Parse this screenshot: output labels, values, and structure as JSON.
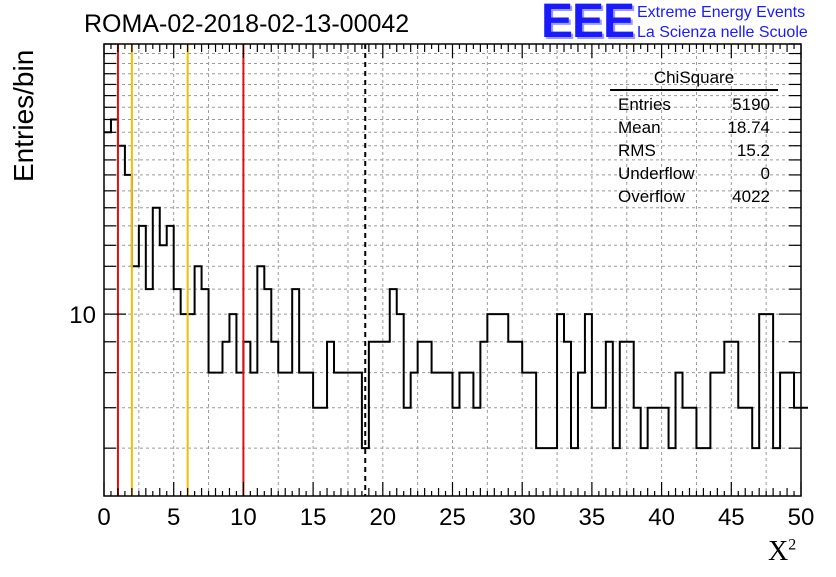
{
  "title": "ROMA-02-2018-02-13-00042",
  "logo": {
    "mark": "EEE",
    "line1": "Extreme Energy Events",
    "line2": "La Scienza nelle Scuole"
  },
  "stats": {
    "title": "ChiSquare",
    "rows": [
      {
        "label": "Entries",
        "value": "5190"
      },
      {
        "label": "Mean",
        "value": "18.74"
      },
      {
        "label": "RMS",
        "value": "15.2"
      },
      {
        "label": "Underflow",
        "value": "0"
      },
      {
        "label": "Overflow",
        "value": "4022"
      }
    ]
  },
  "chart_data": {
    "type": "step",
    "ylabel": "Entries/bin",
    "xlabel_base": "X",
    "xlabel_sup": "2",
    "xlim": [
      0,
      50
    ],
    "ylim": [
      5,
      28
    ],
    "yscale": "log",
    "y_tick_labels": [
      {
        "value": 10,
        "label": "10"
      }
    ],
    "x_tick_labels": [
      "0",
      "5",
      "10",
      "15",
      "20",
      "25",
      "30",
      "35",
      "40",
      "45",
      "50"
    ],
    "grid": true,
    "bin_width": 0.5,
    "bin_start": 0,
    "values": [
      20,
      21,
      19,
      17,
      12,
      14,
      11,
      15,
      13,
      14,
      11,
      10,
      10,
      12,
      11,
      8,
      8,
      9,
      10,
      8,
      9,
      8,
      12,
      11,
      9,
      8,
      8,
      11,
      8,
      8,
      7,
      7,
      9,
      8,
      8,
      8,
      8,
      6,
      9,
      9,
      9,
      11,
      10,
      7,
      8,
      9,
      9,
      8,
      8,
      8,
      7,
      8,
      8,
      7,
      9,
      10,
      10,
      10,
      9,
      9,
      8,
      8,
      6,
      6,
      6,
      10,
      9,
      6,
      8,
      10,
      7,
      7,
      9,
      6,
      9,
      9,
      7,
      6,
      7,
      7,
      7,
      6,
      8,
      7,
      7,
      6,
      6,
      8,
      8,
      9,
      9,
      7,
      7,
      6,
      10,
      10,
      6,
      8,
      8,
      7,
      7
    ],
    "markers": [
      {
        "x": 1,
        "color": "#e01010",
        "style": "solid"
      },
      {
        "x": 2,
        "color": "#f0c000",
        "style": "solid"
      },
      {
        "x": 6,
        "color": "#f0c000",
        "style": "solid"
      },
      {
        "x": 10,
        "color": "#e01010",
        "style": "solid"
      },
      {
        "x": 18.74,
        "color": "#000000",
        "style": "dashed"
      }
    ],
    "colors": {
      "line": "#000000",
      "grid": "#9a9a9a"
    }
  }
}
